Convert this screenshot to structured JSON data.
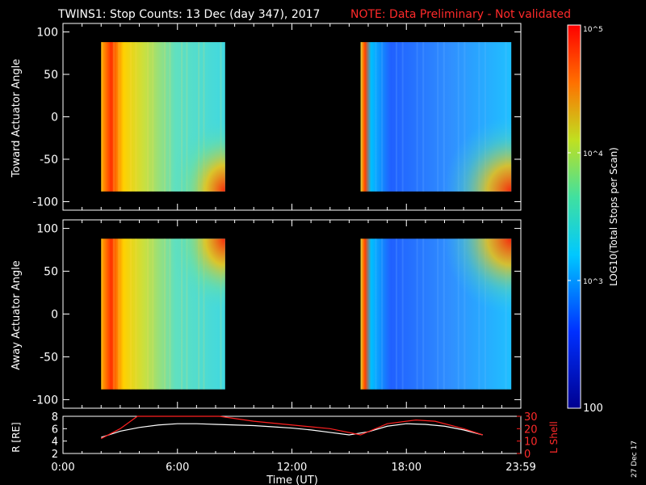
{
  "header": {
    "title": "TWINS1: Stop Counts: 13 Dec (day 347), 2017",
    "note": "NOTE: Data Preliminary - Not validated"
  },
  "panels": [
    {
      "ylabel": "Toward Actuator Angle"
    },
    {
      "ylabel": "Away Actuator Angle"
    }
  ],
  "orbit": {
    "ylabel_left": "R [RE]",
    "ylabel_right": "L Shell",
    "colors": {
      "r": "#ffffff",
      "lshell": "#ff2020"
    }
  },
  "xaxis": {
    "label": "Time (UT)"
  },
  "colorbar": {
    "label": "LOG10(Total Stops per Scan)",
    "tick_labels": [
      "10^5",
      "10^4",
      "10^3",
      "100"
    ]
  },
  "stamp": "27 Dec 17",
  "chart_data": [
    {
      "type": "heatmap",
      "title": "TWINS1: Stop Counts: 13 Dec (day 347), 2017",
      "ylabel": "Toward Actuator Angle",
      "xlabel": "Time (UT)",
      "xlim": [
        0,
        24
      ],
      "ylim": [
        -110,
        110
      ],
      "x_tick_values": [
        0,
        6,
        12,
        18,
        24
      ],
      "x_tick_labels": [
        "0:00",
        "6:00",
        "12:00",
        "18:00",
        "23:59"
      ],
      "y_ticks": [
        100,
        50,
        0,
        -50,
        -100
      ],
      "segments": [
        {
          "start_hour": 2.0,
          "end_hour": 8.5,
          "angle_range": [
            -88,
            88
          ],
          "level": "high"
        },
        {
          "start_hour": 15.6,
          "end_hour": 23.5,
          "angle_range": [
            -88,
            88
          ],
          "level": "low"
        }
      ],
      "colorbar": {
        "scale": "log",
        "range": [
          100,
          100000
        ],
        "ticks": [
          100,
          1000,
          10000,
          100000
        ],
        "label": "LOG10(Total Stops per Scan)"
      }
    },
    {
      "type": "heatmap",
      "ylabel": "Away Actuator Angle",
      "xlabel": "Time (UT)",
      "xlim": [
        0,
        24
      ],
      "ylim": [
        -110,
        110
      ],
      "x_tick_values": [
        0,
        6,
        12,
        18,
        24
      ],
      "x_tick_labels": [
        "0:00",
        "6:00",
        "12:00",
        "18:00",
        "23:59"
      ],
      "y_ticks": [
        100,
        50,
        0,
        -50,
        -100
      ],
      "segments": [
        {
          "start_hour": 2.0,
          "end_hour": 8.5,
          "angle_range": [
            -88,
            88
          ],
          "level": "high"
        },
        {
          "start_hour": 15.6,
          "end_hour": 23.5,
          "angle_range": [
            -88,
            88
          ],
          "level": "low"
        }
      ]
    },
    {
      "type": "line",
      "xlabel": "Time (UT)",
      "xlim": [
        0,
        24
      ],
      "ylabel": "R [RE]",
      "ylim": [
        2,
        8
      ],
      "y_ticks": [
        2,
        4,
        6,
        8
      ],
      "y2label": "L Shell",
      "y2lim": [
        0,
        30
      ],
      "y2_ticks": [
        0,
        10,
        20,
        30
      ],
      "series": [
        {
          "name": "R [RE]",
          "axis": "left",
          "x": [
            2.0,
            3.0,
            4.0,
            5.0,
            6.0,
            7.0,
            8.0,
            9.0,
            10.0,
            11.0,
            12.0,
            13.0,
            14.0,
            15.0,
            16.0,
            17.0,
            18.0,
            19.0,
            20.0,
            21.0,
            22.0
          ],
          "y": [
            4.6,
            5.6,
            6.2,
            6.6,
            6.8,
            6.8,
            6.7,
            6.6,
            6.5,
            6.3,
            6.1,
            5.8,
            5.4,
            5.0,
            5.5,
            6.4,
            6.8,
            6.7,
            6.4,
            5.8,
            5.0
          ]
        },
        {
          "name": "L Shell",
          "axis": "right",
          "x": [
            2.0,
            3.0,
            3.9,
            8.2,
            10.0,
            12.0,
            14.0,
            15.6,
            17.0,
            18.5,
            19.5,
            21.0,
            22.0
          ],
          "y": [
            12,
            20,
            30,
            30,
            26,
            23,
            20,
            15,
            24,
            27,
            26,
            20,
            15
          ]
        }
      ]
    }
  ]
}
